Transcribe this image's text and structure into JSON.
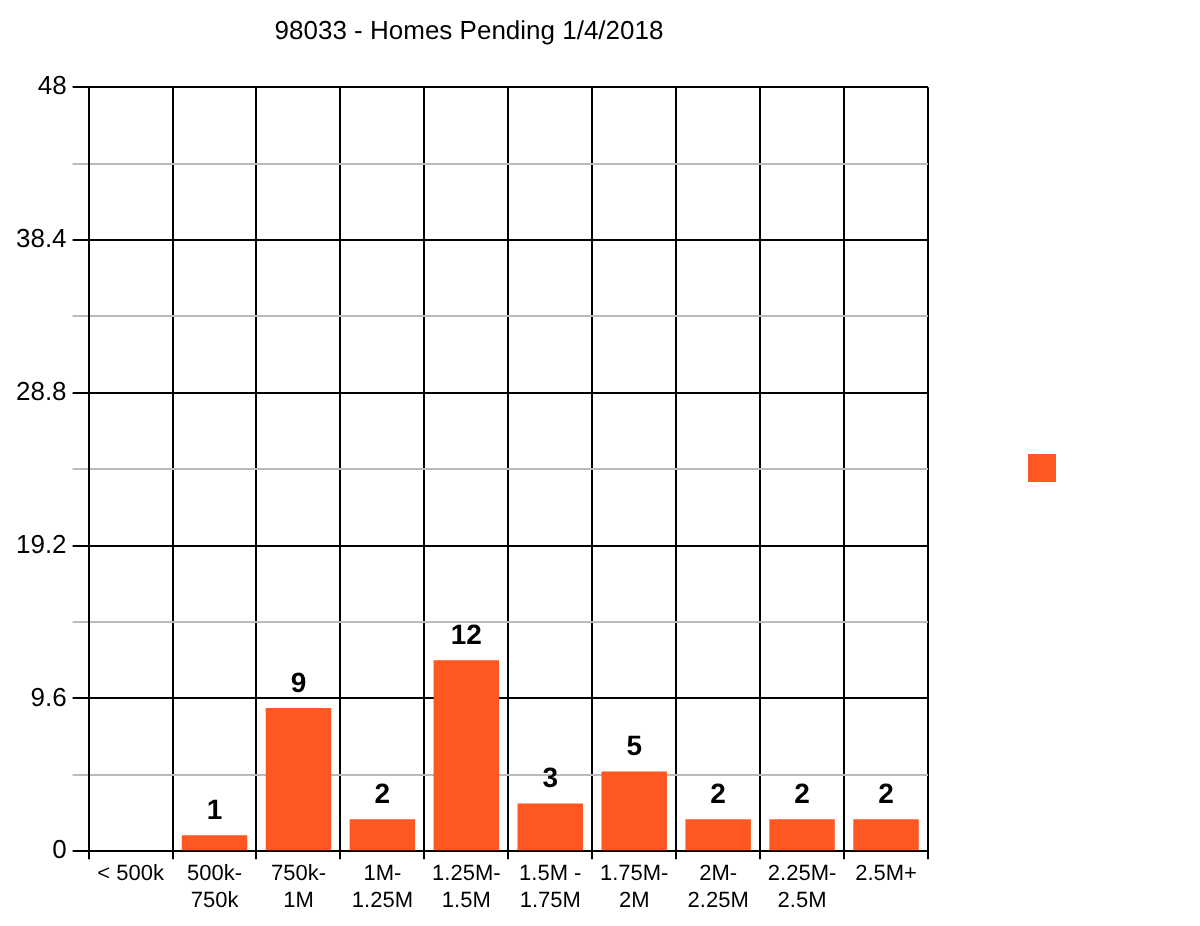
{
  "chart_data": {
    "type": "bar",
    "title": "98033 - Homes Pending 1/4/2018",
    "categories": [
      "< 500k",
      "500k-750k",
      "750k-1M",
      "1M-1.25M",
      "1.25M-1.5M",
      "1.5M - 1.75M",
      "1.75M-2M",
      "2M-2.25M",
      "2.25M-2.5M",
      "2.5M+"
    ],
    "series": [
      {
        "color": "#ff5722",
        "values": [
          0,
          1,
          9,
          2,
          12,
          3,
          5,
          2,
          2,
          2
        ],
        "value_labels": [
          null,
          "1",
          "9",
          "2",
          "12",
          "3",
          "5",
          "2",
          "2",
          "2"
        ]
      }
    ],
    "ylim": [
      0,
      48
    ],
    "yticks": [
      0,
      {
        "value": 4.8,
        "label": null
      },
      9.6,
      {
        "value": 14.4,
        "label": null
      },
      19.2,
      {
        "value": 24,
        "label": null
      },
      28.8,
      {
        "value": 33.6,
        "label": null
      },
      38.4,
      {
        "value": 43.2,
        "label": null
      },
      48
    ],
    "grid": true
  }
}
